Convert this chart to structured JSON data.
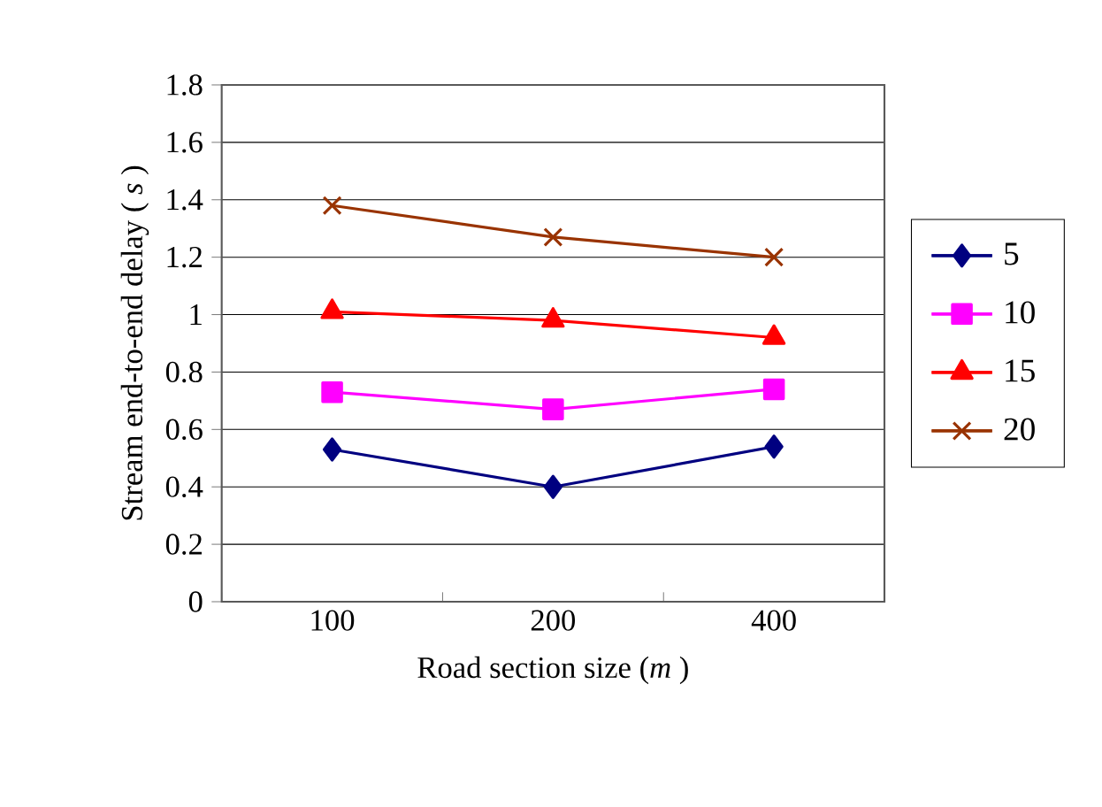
{
  "chart_data": {
    "type": "line",
    "xlabel": "Road section size (*m* )",
    "ylabel": "Stream end-to-end delay ( *s* )",
    "categories": [
      "100",
      "200",
      "400"
    ],
    "series": [
      {
        "name": "5",
        "color": "#000080",
        "marker": "diamond",
        "values": [
          0.53,
          0.4,
          0.54
        ]
      },
      {
        "name": "10",
        "color": "#ff00ff",
        "marker": "square",
        "values": [
          0.73,
          0.67,
          0.74
        ]
      },
      {
        "name": "15",
        "color": "#ff0000",
        "marker": "triangle",
        "values": [
          1.01,
          0.98,
          0.92
        ]
      },
      {
        "name": "20",
        "color": "#993300",
        "marker": "cross",
        "values": [
          1.38,
          1.27,
          1.2
        ]
      }
    ],
    "ylim": [
      0,
      1.8
    ],
    "yticks": [
      0,
      0.2,
      0.4,
      0.6,
      0.8,
      1,
      1.2,
      1.4,
      1.6,
      1.8
    ],
    "grid": "y",
    "legend": "right"
  }
}
